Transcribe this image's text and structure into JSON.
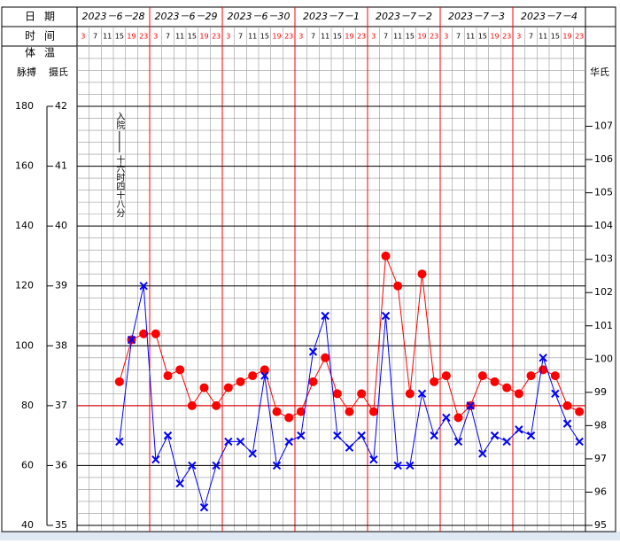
{
  "chart_data": {
    "type": "line",
    "row_labels": {
      "date": "日期",
      "time": "时间",
      "temp": "体温",
      "pulse": "脉搏",
      "celsius": "摄氏",
      "fahrenheit": "华氏"
    },
    "dates": [
      "2023－6－28",
      "2023－6－29",
      "2023－6－30",
      "2023－7－1",
      "2023－7－2",
      "2023－7－3",
      "2023－7－4"
    ],
    "categories": [
      "3",
      "7",
      "11",
      "15",
      "19",
      "23",
      "3",
      "7",
      "11",
      "15",
      "19",
      "23",
      "3",
      "7",
      "11",
      "15",
      "19",
      "23",
      "3",
      "7",
      "11",
      "15",
      "19",
      "23",
      "3",
      "7",
      "11",
      "15",
      "19",
      "23",
      "3",
      "7",
      "11",
      "15",
      "19",
      "23",
      "3",
      "7",
      "11",
      "15",
      "19",
      "23"
    ],
    "time_colors": [
      "#ff0000",
      "#000000",
      "#000000",
      "#000000",
      "#ff0000",
      "#ff0000"
    ],
    "annotation": {
      "before": "入院",
      "after": "十六时四十八分"
    },
    "ylim": [
      35,
      42
    ],
    "yticks": [
      35,
      36,
      37,
      38,
      39,
      40,
      41,
      42
    ],
    "y2lim": [
      40,
      180
    ],
    "y2ticks": [
      40,
      60,
      80,
      100,
      120,
      140,
      160,
      180
    ],
    "fahrenheit_lim": [
      95,
      107.6
    ],
    "fahrenheit_ticks": [
      95,
      96,
      97,
      98,
      99,
      100,
      101,
      102,
      103,
      104,
      105,
      106,
      107
    ],
    "normal_temperature": 37,
    "series": [
      {
        "color": "#ff0000",
        "marker": "circle",
        "values": [
          null,
          null,
          null,
          37.4,
          38.1,
          38.2,
          38.2,
          37.5,
          37.6,
          37.0,
          37.3,
          37.0,
          37.3,
          37.4,
          37.5,
          37.6,
          36.9,
          36.8,
          36.9,
          37.4,
          37.8,
          37.2,
          36.9,
          37.2,
          36.9,
          39.5,
          39.0,
          37.2,
          39.2,
          37.4,
          37.5,
          36.8,
          37.0,
          37.5,
          37.4,
          37.3,
          37.2,
          37.5,
          37.6,
          37.5,
          37.0,
          36.9
        ]
      },
      {
        "color": "#0000ff",
        "marker": "x",
        "axis": "y2",
        "values": [
          null,
          null,
          null,
          68,
          102,
          120,
          62,
          70,
          54,
          60,
          46,
          60,
          68,
          68,
          64,
          90,
          60,
          68,
          70,
          98,
          110,
          70,
          66,
          70,
          62,
          110,
          60,
          60,
          84,
          70,
          76,
          68,
          80,
          64,
          70,
          68,
          72,
          70,
          96,
          84,
          74,
          68
        ]
      }
    ]
  }
}
